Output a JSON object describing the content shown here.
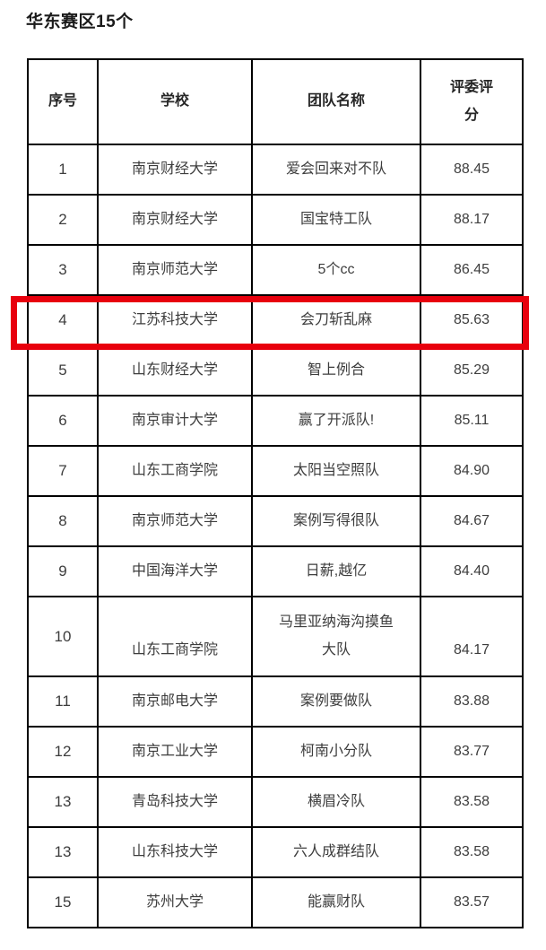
{
  "page": {
    "title": "华东赛区15个"
  },
  "colors": {
    "highlight_red": "#e8000d",
    "table_border": "#000000",
    "body_text": "#3d3d3d"
  },
  "table": {
    "headers": [
      "序号",
      "学校",
      "团队名称",
      "评委评分"
    ],
    "rows": [
      {
        "rank": "1",
        "school": "南京财经大学",
        "team": "爱会回来对不队",
        "score": "88.45",
        "highlighted": false,
        "tall": false
      },
      {
        "rank": "2",
        "school": "南京财经大学",
        "team": "国宝特工队",
        "score": "88.17",
        "highlighted": false,
        "tall": false
      },
      {
        "rank": "3",
        "school": "南京师范大学",
        "team": "5个cc",
        "score": "86.45",
        "highlighted": false,
        "tall": false
      },
      {
        "rank": "4",
        "school": "江苏科技大学",
        "team": "会刀斩乱麻",
        "score": "85.63",
        "highlighted": true,
        "tall": false
      },
      {
        "rank": "5",
        "school": "山东财经大学",
        "team": "智上例合",
        "score": "85.29",
        "highlighted": false,
        "tall": false
      },
      {
        "rank": "6",
        "school": "南京审计大学",
        "team": "赢了开派队!",
        "score": "85.11",
        "highlighted": false,
        "tall": false
      },
      {
        "rank": "7",
        "school": "山东工商学院",
        "team": "太阳当空照队",
        "score": "84.90",
        "highlighted": false,
        "tall": false
      },
      {
        "rank": "8",
        "school": "南京师范大学",
        "team": "案例写得很队",
        "score": "84.67",
        "highlighted": false,
        "tall": false
      },
      {
        "rank": "9",
        "school": "中国海洋大学",
        "team": "日薪,越亿",
        "score": "84.40",
        "highlighted": false,
        "tall": false
      },
      {
        "rank": "10",
        "school": "山东工商学院",
        "team": "马里亚纳海沟摸鱼大队",
        "score": "84.17",
        "highlighted": false,
        "tall": true
      },
      {
        "rank": "11",
        "school": "南京邮电大学",
        "team": "案例要做队",
        "score": "83.88",
        "highlighted": false,
        "tall": false
      },
      {
        "rank": "12",
        "school": "南京工业大学",
        "team": "柯南小分队",
        "score": "83.77",
        "highlighted": false,
        "tall": false
      },
      {
        "rank": "13",
        "school": "青岛科技大学",
        "team": "横眉冷队",
        "score": "83.58",
        "highlighted": false,
        "tall": false
      },
      {
        "rank": "13",
        "school": "山东科技大学",
        "team": "六人成群结队",
        "score": "83.58",
        "highlighted": false,
        "tall": false
      },
      {
        "rank": "15",
        "school": "苏州大学",
        "team": "能赢财队",
        "score": "83.57",
        "highlighted": false,
        "tall": false
      }
    ]
  }
}
